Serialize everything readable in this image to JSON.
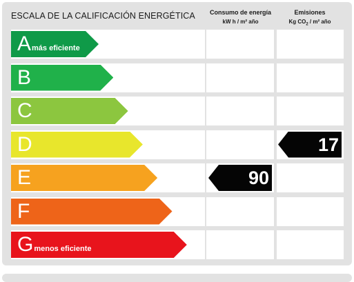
{
  "header": {
    "title": "ESCALA DE LA CALIFICACIÓN ENERGÉTICA",
    "energy_col": {
      "line1": "Consumo de energía",
      "line2": "kW h / m² año"
    },
    "emissions_col": {
      "line1": "Emisiones",
      "line2_a": "Kg CO",
      "line2_sub": "2",
      "line2_b": " / m² año"
    }
  },
  "ratings": [
    {
      "letter": "A",
      "note": "más eficiente",
      "color": "#0f9a48"
    },
    {
      "letter": "B",
      "note": "",
      "color": "#20b14a"
    },
    {
      "letter": "C",
      "note": "",
      "color": "#8cc63f"
    },
    {
      "letter": "D",
      "note": "",
      "color": "#e8e62c"
    },
    {
      "letter": "E",
      "note": "",
      "color": "#f6a21f"
    },
    {
      "letter": "F",
      "note": "",
      "color": "#ee6419"
    },
    {
      "letter": "G",
      "note": "menos eficiente",
      "color": "#e8141c"
    }
  ],
  "energy_rating": {
    "letter": "E",
    "value": "90"
  },
  "emissions_rating": {
    "letter": "D",
    "value": "17"
  }
}
